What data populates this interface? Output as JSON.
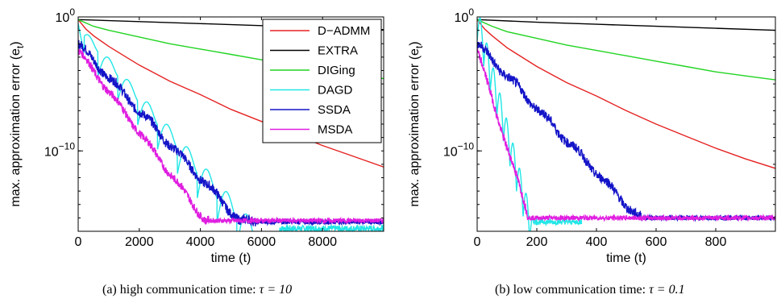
{
  "chart_data": [
    {
      "type": "line",
      "caption_label": "(a)",
      "caption_text": "high communication time:",
      "caption_math": "τ = 10",
      "xlabel": "time (t)",
      "ylabel": "max. approximation error (e_t)",
      "ylabel_main": "max. approximation error (e",
      "ylabel_sub": "t",
      "ylabel_tail": ")",
      "yscale": "log",
      "xlim": [
        0,
        10000
      ],
      "ylim": [
        1e-16,
        1
      ],
      "xticks": [
        0,
        2000,
        4000,
        6000,
        8000
      ],
      "xtick_labels": [
        "0",
        "2000",
        "4000",
        "6000",
        "8000"
      ],
      "yticks": [
        1,
        1e-10
      ],
      "ytick_base": "10",
      "ytick_exponents": [
        "0",
        "−10"
      ],
      "legend": {
        "placement": "top-right"
      },
      "series": [
        {
          "name": "D−ADMM",
          "color": "#e52222",
          "points": [
            [
              0,
              -0.2
            ],
            [
              250,
              -0.9
            ],
            [
              500,
              -1.4
            ],
            [
              1000,
              -2.2
            ],
            [
              1500,
              -2.9
            ],
            [
              2000,
              -3.6
            ],
            [
              2500,
              -4.2
            ],
            [
              3000,
              -4.8
            ],
            [
              3500,
              -5.3
            ],
            [
              4000,
              -5.8
            ],
            [
              5000,
              -6.9
            ],
            [
              6000,
              -7.8
            ],
            [
              7000,
              -8.7
            ],
            [
              8000,
              -9.6
            ],
            [
              9000,
              -10.4
            ],
            [
              10000,
              -11.2
            ]
          ]
        },
        {
          "name": "EXTRA",
          "color": "#000000",
          "points": [
            [
              0,
              -0.2
            ],
            [
              2000,
              -0.35
            ],
            [
              4000,
              -0.5
            ],
            [
              6000,
              -0.65
            ],
            [
              8000,
              -0.8
            ],
            [
              10000,
              -0.95
            ]
          ]
        },
        {
          "name": "DIGing",
          "color": "#22d422",
          "points": [
            [
              0,
              -0.2
            ],
            [
              500,
              -0.7
            ],
            [
              1000,
              -1.0
            ],
            [
              2000,
              -1.5
            ],
            [
              3000,
              -2.0
            ],
            [
              4000,
              -2.4
            ],
            [
              5000,
              -2.8
            ],
            [
              6000,
              -3.2
            ],
            [
              7000,
              -3.6
            ],
            [
              8000,
              -4.0
            ],
            [
              9000,
              -4.3
            ],
            [
              10000,
              -4.6
            ]
          ]
        }
      ],
      "oscillating_series": [
        {
          "name": "DAGD",
          "color": "#22e6e6",
          "start": -0.5,
          "lobe_peak": -3.9,
          "valley_start": -2.6,
          "valley_slope_per_1000": -2.8,
          "period": 650,
          "floor": -15.8,
          "floor_x": 6600
        },
        {
          "name": "SSDA",
          "color": "#1414c8",
          "start": -2.0,
          "decay_per_1000": -2.5,
          "floor": -15.3,
          "floor_x": 5800,
          "noise": 0.35
        },
        {
          "name": "MSDA",
          "color": "#e01ee0",
          "start": -2.5,
          "decay_per_1000": -3.05,
          "floor": -15.2,
          "floor_x": 4300,
          "noise": 0.3
        }
      ]
    },
    {
      "type": "line",
      "caption_label": "(b)",
      "caption_text": "low communication time:",
      "caption_math": "τ = 0.1",
      "xlabel": "time (t)",
      "ylabel": "max. approximation error (e_t)",
      "ylabel_main": "max. approximation error (e",
      "ylabel_sub": "t",
      "ylabel_tail": ")",
      "yscale": "log",
      "xlim": [
        0,
        1000
      ],
      "ylim": [
        1e-16,
        1
      ],
      "xticks": [
        0,
        200,
        400,
        600,
        800
      ],
      "xtick_labels": [
        "0",
        "200",
        "400",
        "600",
        "800"
      ],
      "yticks": [
        1,
        1e-10
      ],
      "ytick_base": "10",
      "ytick_exponents": [
        "0",
        "−10"
      ],
      "series": [
        {
          "name": "D−ADMM",
          "color": "#e52222",
          "points": [
            [
              0,
              -0.2
            ],
            [
              25,
              -0.9
            ],
            [
              50,
              -1.4
            ],
            [
              100,
              -2.3
            ],
            [
              150,
              -3.0
            ],
            [
              200,
              -3.7
            ],
            [
              250,
              -4.3
            ],
            [
              300,
              -4.9
            ],
            [
              400,
              -5.9
            ],
            [
              500,
              -7.0
            ],
            [
              600,
              -8.0
            ],
            [
              700,
              -8.9
            ],
            [
              800,
              -9.8
            ],
            [
              900,
              -10.6
            ],
            [
              1000,
              -11.3
            ]
          ]
        },
        {
          "name": "EXTRA",
          "color": "#000000",
          "points": [
            [
              0,
              -0.2
            ],
            [
              200,
              -0.4
            ],
            [
              400,
              -0.55
            ],
            [
              600,
              -0.7
            ],
            [
              800,
              -0.85
            ],
            [
              1000,
              -1.0
            ]
          ]
        },
        {
          "name": "DIGing",
          "color": "#22d422",
          "points": [
            [
              0,
              -0.2
            ],
            [
              50,
              -0.7
            ],
            [
              100,
              -1.1
            ],
            [
              200,
              -1.6
            ],
            [
              300,
              -2.1
            ],
            [
              400,
              -2.5
            ],
            [
              500,
              -2.9
            ],
            [
              600,
              -3.3
            ],
            [
              700,
              -3.7
            ],
            [
              800,
              -4.1
            ],
            [
              900,
              -4.4
            ],
            [
              1000,
              -4.7
            ]
          ]
        }
      ],
      "oscillating_series": [
        {
          "name": "DAGD",
          "color": "#22e6e6",
          "start": -0.5,
          "decay_per_100": -8.5,
          "period": 22,
          "floor": -15.3,
          "floor_x": 190,
          "end_x": 350
        },
        {
          "name": "SSDA",
          "color": "#1414c8",
          "start": -2.0,
          "decay_per_100": -2.4,
          "floor": -15.0,
          "floor_x": 550,
          "noise": 0.35
        },
        {
          "name": "MSDA",
          "color": "#e01ee0",
          "start": -2.5,
          "decay_per_100": -7.2,
          "floor": -15.0,
          "floor_x": 170,
          "noise": 0.3
        }
      ]
    }
  ]
}
